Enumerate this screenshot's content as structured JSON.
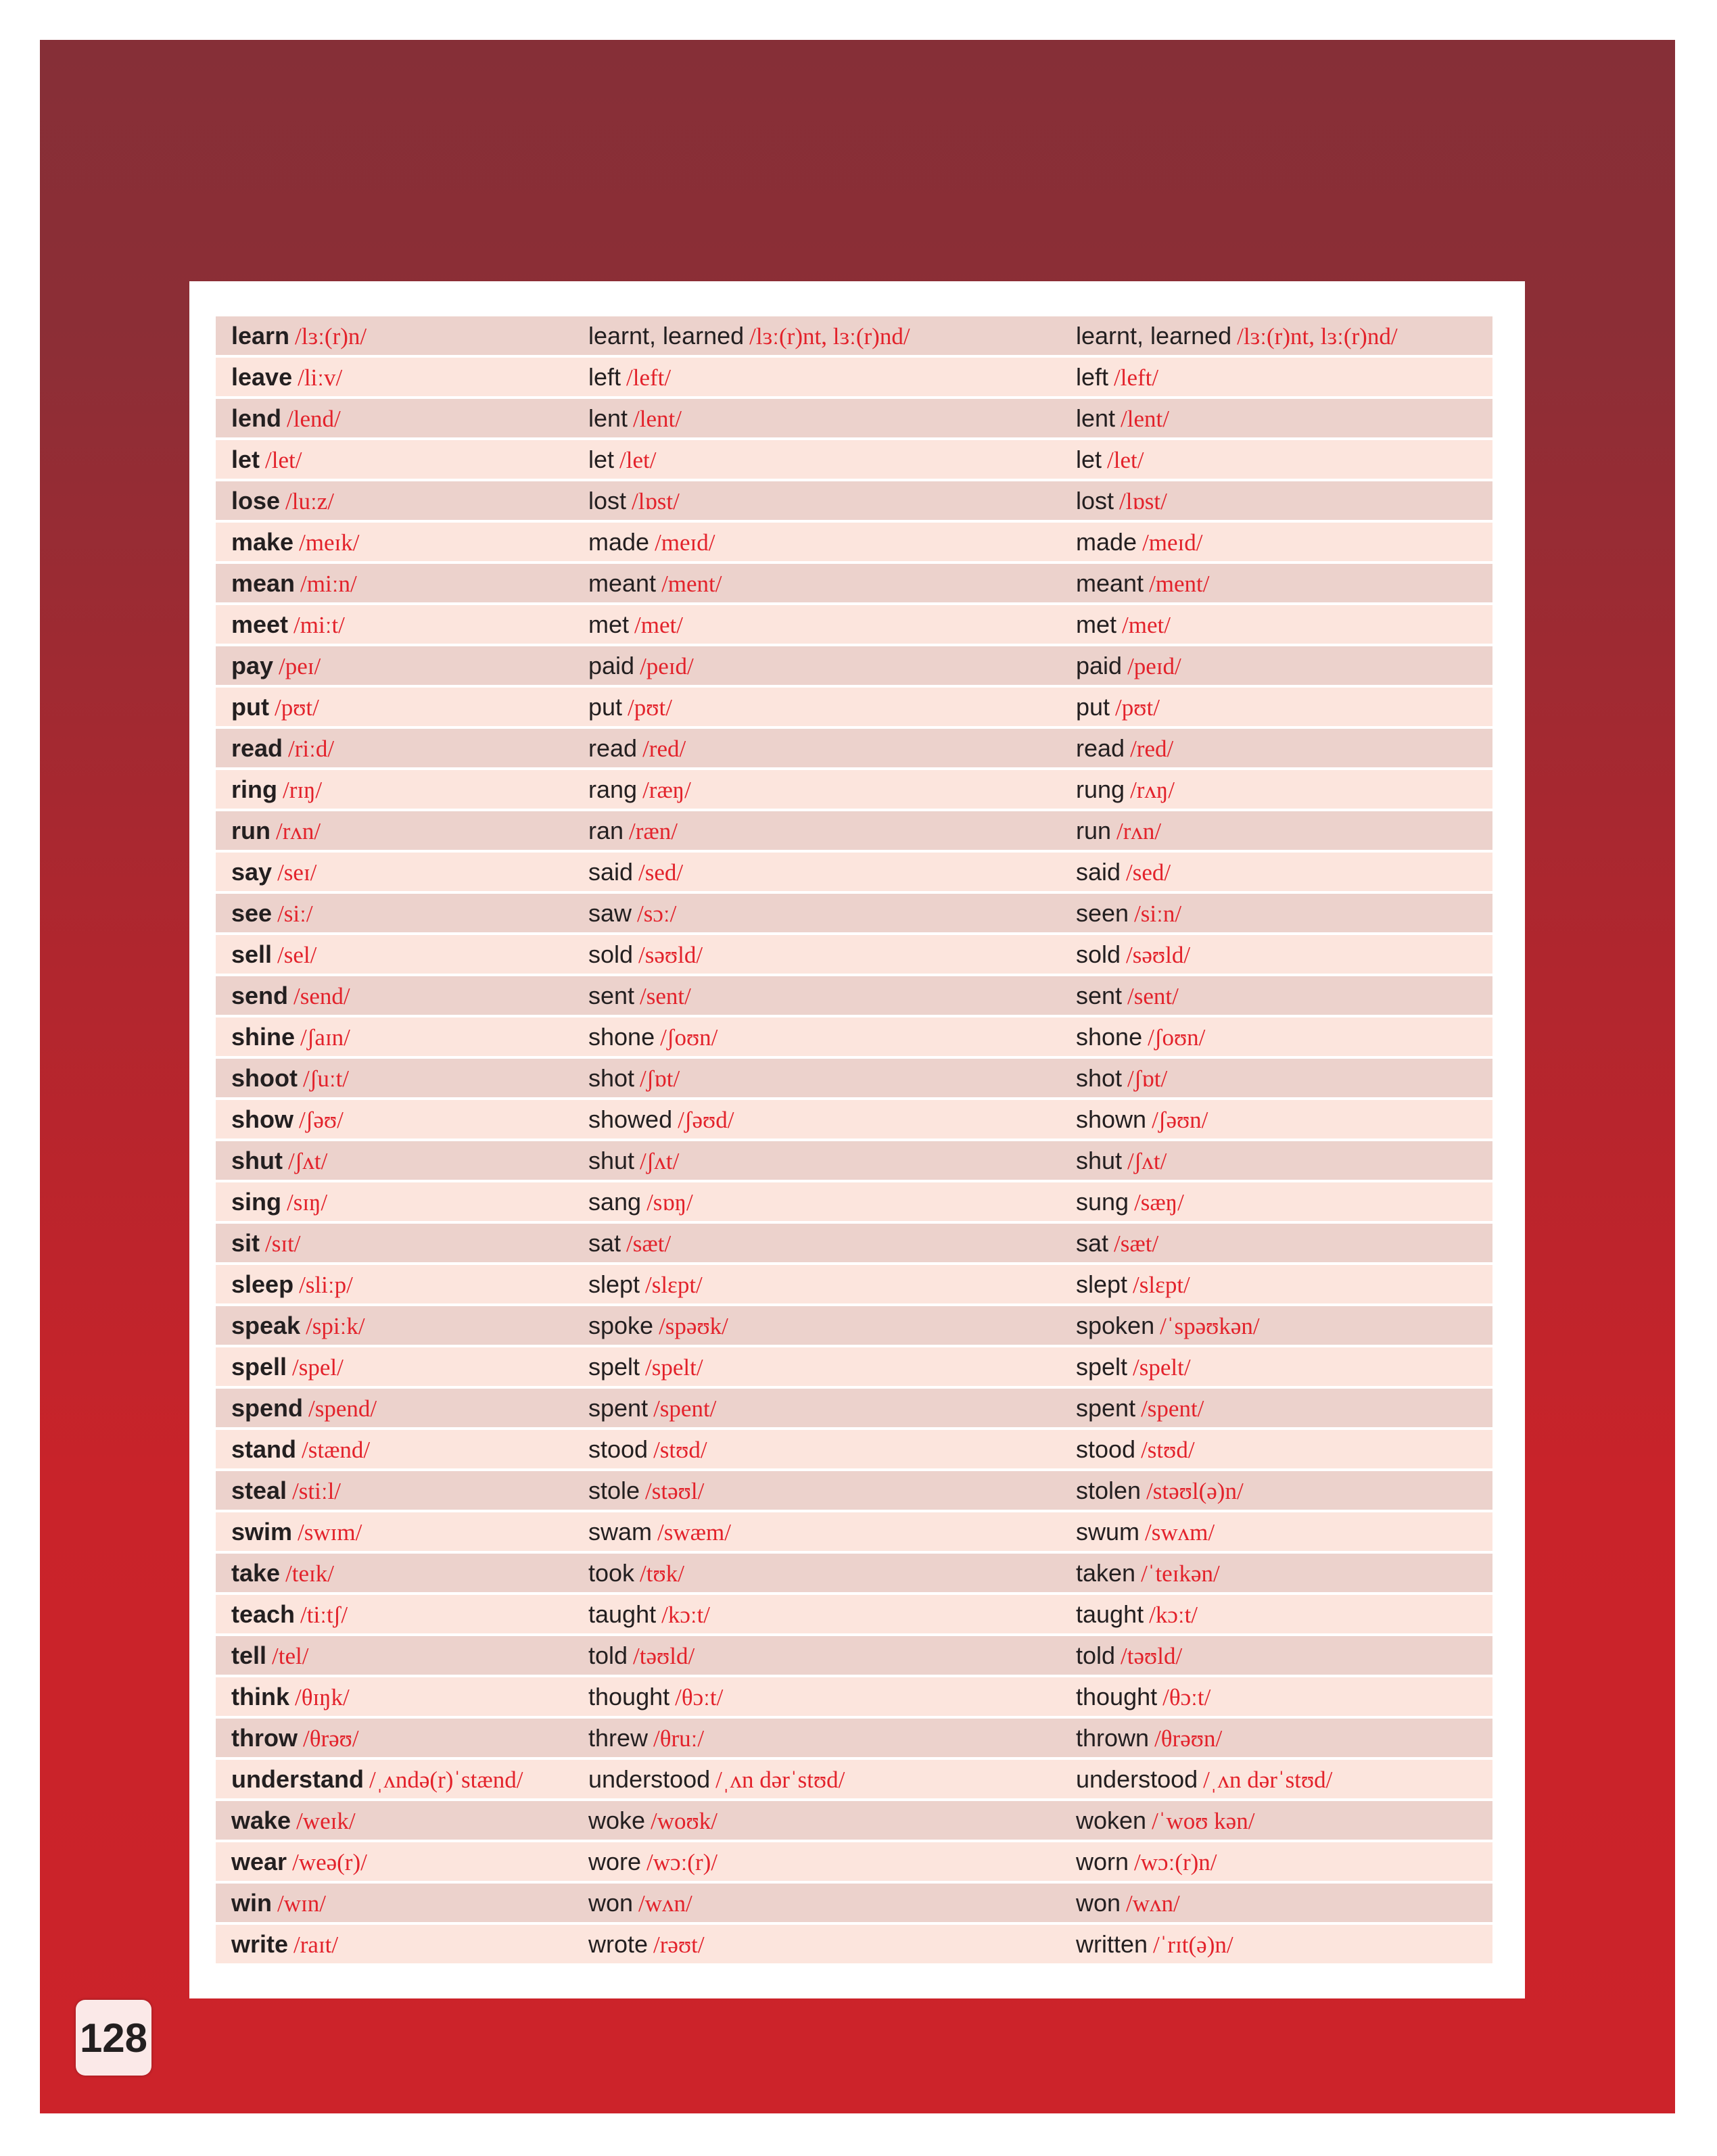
{
  "page_number": "128",
  "colors": {
    "accent_text": "#e3222b",
    "row_dark": "#ecd2cc",
    "row_light": "#fce5dd",
    "background_top": "#862f37",
    "background_bottom": "#cc232a"
  },
  "rows": [
    [
      [
        "learn",
        "/lɜː(r)n/"
      ],
      [
        "learnt, learned",
        "/lɜː(r)nt, lɜː(r)nd/"
      ],
      [
        "learnt, learned",
        "/lɜː(r)nt, lɜː(r)nd/"
      ]
    ],
    [
      [
        "leave",
        "/liːv/"
      ],
      [
        "left",
        "/left/"
      ],
      [
        "left",
        "/left/"
      ]
    ],
    [
      [
        "lend",
        "/lend/"
      ],
      [
        "lent",
        "/lent/"
      ],
      [
        "lent",
        "/lent/"
      ]
    ],
    [
      [
        "let",
        "/let/"
      ],
      [
        "let",
        "/let/"
      ],
      [
        "let",
        "/let/"
      ]
    ],
    [
      [
        "lose",
        "/luːz/"
      ],
      [
        "lost",
        "/lɒst/"
      ],
      [
        "lost",
        "/lɒst/"
      ]
    ],
    [
      [
        "make",
        "/meɪk/"
      ],
      [
        "made",
        "/meɪd/"
      ],
      [
        "made",
        "/meɪd/"
      ]
    ],
    [
      [
        "mean",
        "/miːn/"
      ],
      [
        "meant",
        "/ment/"
      ],
      [
        "meant",
        "/ment/"
      ]
    ],
    [
      [
        "meet",
        "/miːt/"
      ],
      [
        "met",
        "/met/"
      ],
      [
        "met",
        "/met/"
      ]
    ],
    [
      [
        "pay",
        "/peɪ/"
      ],
      [
        "paid",
        "/peɪd/"
      ],
      [
        "paid",
        "/peɪd/"
      ]
    ],
    [
      [
        "put",
        "/pʊt/"
      ],
      [
        "put",
        "/pʊt/"
      ],
      [
        "put",
        "/pʊt/"
      ]
    ],
    [
      [
        "read",
        "/riːd/"
      ],
      [
        "read",
        "/red/"
      ],
      [
        "read",
        "/red/"
      ]
    ],
    [
      [
        "ring",
        "/rɪŋ/"
      ],
      [
        "rang",
        "/ræŋ/"
      ],
      [
        "rung",
        "/rʌŋ/"
      ]
    ],
    [
      [
        "run",
        "/rʌn/"
      ],
      [
        "ran",
        "/ræn/"
      ],
      [
        "run",
        "/rʌn/"
      ]
    ],
    [
      [
        "say",
        "/seɪ/"
      ],
      [
        "said",
        "/sed/"
      ],
      [
        "said",
        "/sed/"
      ]
    ],
    [
      [
        "see",
        "/siː/"
      ],
      [
        "saw",
        "/sɔː/"
      ],
      [
        "seen",
        "/siːn/"
      ]
    ],
    [
      [
        "sell",
        "/sel/"
      ],
      [
        "sold",
        "/səʊld/"
      ],
      [
        "sold",
        "/səʊld/"
      ]
    ],
    [
      [
        "send",
        "/send/"
      ],
      [
        "sent",
        "/sent/"
      ],
      [
        "sent",
        "/sent/"
      ]
    ],
    [
      [
        "shine",
        "/ʃaɪn/"
      ],
      [
        "shone",
        "/ʃoʊn/"
      ],
      [
        "shone",
        "/ʃoʊn/"
      ]
    ],
    [
      [
        "shoot",
        "/ʃuːt/"
      ],
      [
        "shot",
        "/ʃɒt/"
      ],
      [
        "shot",
        "/ʃɒt/"
      ]
    ],
    [
      [
        "show",
        "/ʃəʊ/"
      ],
      [
        "showed",
        "/ʃəʊd/"
      ],
      [
        "shown",
        "/ʃəʊn/"
      ]
    ],
    [
      [
        "shut",
        "/ʃʌt/"
      ],
      [
        "shut",
        "/ʃʌt/"
      ],
      [
        "shut",
        "/ʃʌt/"
      ]
    ],
    [
      [
        "sing",
        "/sɪŋ/"
      ],
      [
        "sang",
        "/sɒŋ/"
      ],
      [
        "sung",
        "/sæŋ/"
      ]
    ],
    [
      [
        "sit",
        "/sɪt/"
      ],
      [
        "sat",
        "/sæt/"
      ],
      [
        "sat",
        "/sæt/"
      ]
    ],
    [
      [
        "sleep",
        "/sliːp/"
      ],
      [
        "slept",
        "/slɛpt/"
      ],
      [
        "slept",
        "/slɛpt/"
      ]
    ],
    [
      [
        "speak",
        "/spiːk/"
      ],
      [
        "spoke",
        "/spəʊk/"
      ],
      [
        "spoken",
        "/ˈspəʊkən/"
      ]
    ],
    [
      [
        "spell",
        "/spel/"
      ],
      [
        "spelt",
        "/spelt/"
      ],
      [
        "spelt",
        "/spelt/"
      ]
    ],
    [
      [
        "spend",
        "/spend/"
      ],
      [
        "spent",
        "/spent/"
      ],
      [
        "spent",
        "/spent/"
      ]
    ],
    [
      [
        "stand",
        "/stænd/"
      ],
      [
        "stood",
        "/stʊd/"
      ],
      [
        "stood",
        "/stʊd/"
      ]
    ],
    [
      [
        "steal",
        "/stiːl/"
      ],
      [
        "stole",
        "/stəʊl/"
      ],
      [
        "stolen",
        "/stəʊl(ə)n/"
      ]
    ],
    [
      [
        "swim",
        "/swɪm/"
      ],
      [
        "swam",
        "/swæm/"
      ],
      [
        "swum",
        "/swʌm/"
      ]
    ],
    [
      [
        "take",
        "/teɪk/"
      ],
      [
        "took",
        "/tʊk/"
      ],
      [
        "taken",
        "/ˈteɪkən/"
      ]
    ],
    [
      [
        "teach",
        "/tiːtʃ/"
      ],
      [
        "taught",
        "/kɔːt/"
      ],
      [
        "taught",
        "/kɔːt/"
      ]
    ],
    [
      [
        "tell",
        "/tel/"
      ],
      [
        "told",
        "/təʊld/"
      ],
      [
        "told",
        "/təʊld/"
      ]
    ],
    [
      [
        "think",
        "/θɪŋk/"
      ],
      [
        "thought",
        "/θɔːt/"
      ],
      [
        "thought",
        "/θɔːt/"
      ]
    ],
    [
      [
        "throw",
        "/θrəʊ/"
      ],
      [
        "threw",
        "/θruː/"
      ],
      [
        "thrown",
        "/θrəʊn/"
      ]
    ],
    [
      [
        "understand",
        "/ˌʌndə(r)ˈstænd/"
      ],
      [
        "understood",
        "/ˌʌn dərˈstʊd/"
      ],
      [
        "understood",
        "/ˌʌn dərˈstʊd/"
      ]
    ],
    [
      [
        "wake",
        "/weɪk/"
      ],
      [
        "woke",
        "/woʊk/"
      ],
      [
        "woken",
        "/ˈwoʊ kən/"
      ]
    ],
    [
      [
        "wear",
        "/weə(r)/"
      ],
      [
        "wore",
        "/wɔː(r)/"
      ],
      [
        "worn",
        "/wɔː(r)n/"
      ]
    ],
    [
      [
        "win",
        "/wɪn/"
      ],
      [
        "won",
        "/wʌn/"
      ],
      [
        "won",
        "/wʌn/"
      ]
    ],
    [
      [
        "write",
        "/raɪt/"
      ],
      [
        "wrote",
        "/rəʊt/"
      ],
      [
        "written",
        "/ˈrɪt(ə)n/"
      ]
    ]
  ]
}
